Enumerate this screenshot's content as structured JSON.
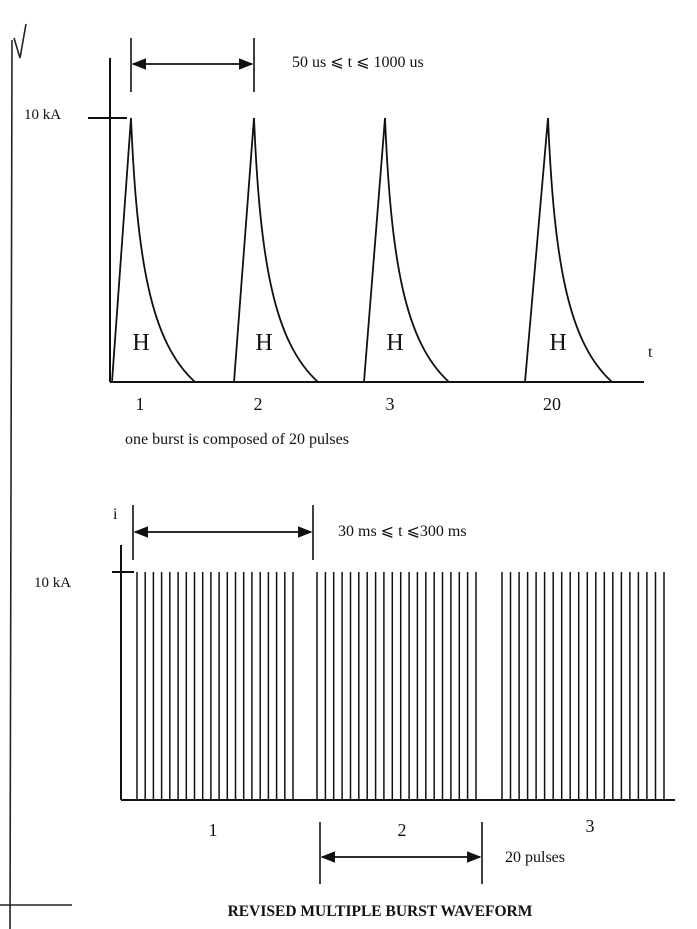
{
  "top_diagram": {
    "period_label": "50 us  ⩽  t ⩽ 1000 us",
    "amplitude_label": "10 kA",
    "pulse_marker": "H",
    "time_axis_label": "t",
    "pulse_numbers": [
      "1",
      "2",
      "3",
      "20"
    ],
    "caption": "one burst is composed of 20 pulses"
  },
  "bottom_diagram": {
    "current_axis_label": "i",
    "period_label": "30 ms ⩽ t ⩽300 ms",
    "amplitude_label": "10 kA",
    "burst_numbers": [
      "1",
      "2",
      "3"
    ],
    "pulses_label": "20 pulses",
    "pulses_per_burst": 20
  },
  "title": "REVISED MULTIPLE BURST WAVEFORM",
  "colors": {
    "ink": "#111111",
    "paper": "#ffffff"
  }
}
